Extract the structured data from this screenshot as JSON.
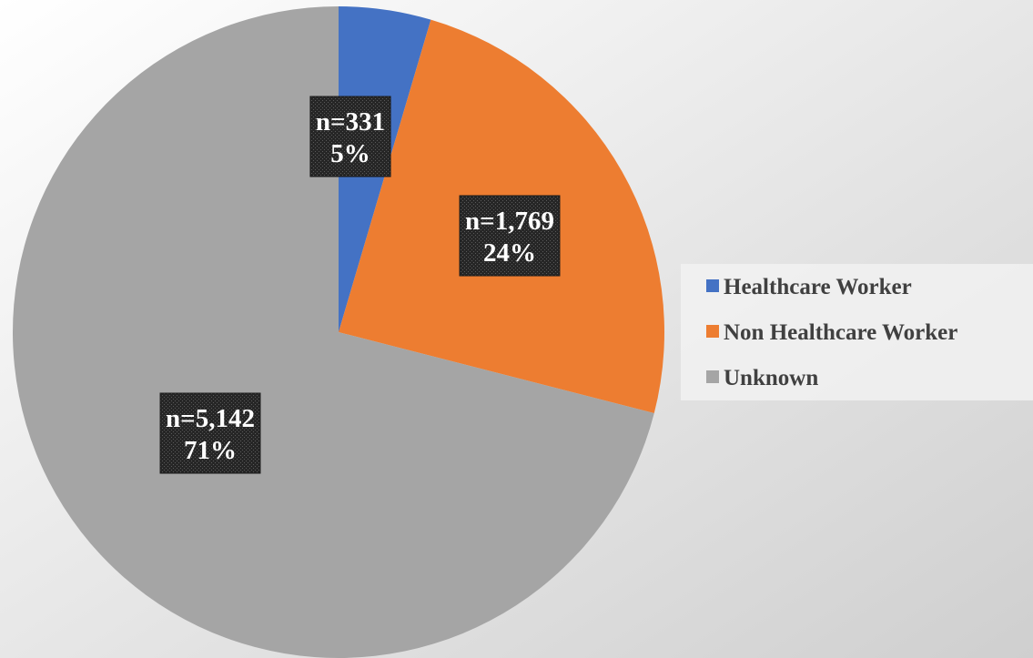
{
  "chart_data": {
    "type": "pie",
    "categories": [
      "Healthcare Worker",
      "Non Healthcare Worker",
      "Unknown"
    ],
    "values": [
      331,
      1769,
      5142
    ],
    "value_labels": [
      "n=331",
      "n=1,769",
      "n=5,142"
    ],
    "percentages": [
      5,
      24,
      71
    ],
    "percentage_labels": [
      "5%",
      "24%",
      "71%"
    ],
    "colors": [
      "#4472c4",
      "#ed7d31",
      "#a5a5a5"
    ],
    "legend": "right"
  }
}
